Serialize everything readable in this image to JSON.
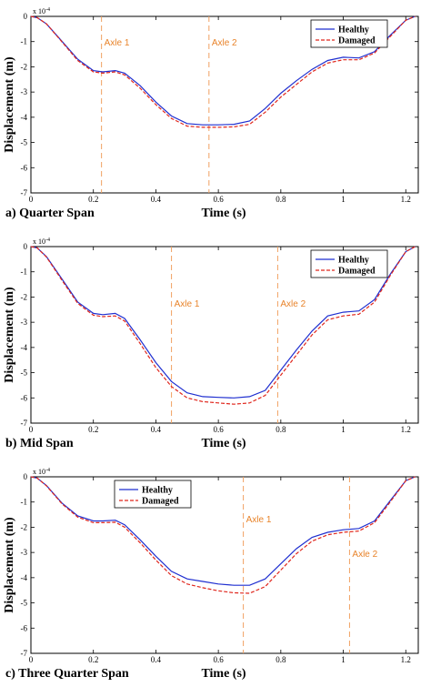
{
  "colors": {
    "healthy": "#1f2fd0",
    "damaged": "#e0261c",
    "axle": "#f0a060",
    "axle_text": "#e8832a"
  },
  "chart_data": [
    {
      "type": "line",
      "caption": "a) Quarter Span",
      "xlabel": "Time (s)",
      "ylabel": "Displacement (m)",
      "y_exponent": "x 10",
      "y_exponent_power": "-4",
      "xlim": [
        0,
        1.24
      ],
      "ylim": [
        -7,
        0
      ],
      "xticks": [
        "0",
        "0.2",
        "0.4",
        "0.6",
        "0.8",
        "1",
        "1.2"
      ],
      "yticks": [
        "0",
        "-1",
        "-2",
        "-3",
        "-4",
        "-5",
        "-6",
        "-7"
      ],
      "legend_position": "top-right",
      "axles": [
        {
          "label": "Axle 1",
          "x": 0.226
        },
        {
          "label": "Axle 2",
          "x": 0.57
        }
      ],
      "series": [
        {
          "name": "Healthy",
          "style": "solid",
          "x": [
            0,
            0.02,
            0.05,
            0.1,
            0.15,
            0.2,
            0.23,
            0.27,
            0.3,
            0.35,
            0.4,
            0.45,
            0.5,
            0.55,
            0.6,
            0.65,
            0.7,
            0.75,
            0.8,
            0.85,
            0.9,
            0.95,
            1.0,
            1.05,
            1.1,
            1.15,
            1.2,
            1.23
          ],
          "y": [
            0,
            -0.05,
            -0.3,
            -1.0,
            -1.7,
            -2.15,
            -2.2,
            -2.15,
            -2.25,
            -2.75,
            -3.4,
            -3.95,
            -4.25,
            -4.3,
            -4.3,
            -4.28,
            -4.15,
            -3.65,
            -3.05,
            -2.55,
            -2.1,
            -1.75,
            -1.62,
            -1.65,
            -1.4,
            -0.75,
            -0.15,
            0
          ]
        },
        {
          "name": "Damaged",
          "style": "dashed",
          "x": [
            0,
            0.02,
            0.05,
            0.1,
            0.15,
            0.2,
            0.23,
            0.27,
            0.3,
            0.35,
            0.4,
            0.45,
            0.5,
            0.55,
            0.6,
            0.65,
            0.7,
            0.75,
            0.8,
            0.85,
            0.9,
            0.95,
            1.0,
            1.05,
            1.1,
            1.15,
            1.2,
            1.23
          ],
          "y": [
            0,
            -0.05,
            -0.3,
            -1.02,
            -1.75,
            -2.2,
            -2.25,
            -2.2,
            -2.32,
            -2.85,
            -3.5,
            -4.05,
            -4.35,
            -4.4,
            -4.4,
            -4.38,
            -4.28,
            -3.8,
            -3.2,
            -2.7,
            -2.2,
            -1.85,
            -1.72,
            -1.72,
            -1.45,
            -0.8,
            -0.15,
            0
          ]
        }
      ]
    },
    {
      "type": "line",
      "caption": "b) Mid Span",
      "xlabel": "Time (s)",
      "ylabel": "Displacement (m)",
      "y_exponent": "x 10",
      "y_exponent_power": "-4",
      "xlim": [
        0,
        1.24
      ],
      "ylim": [
        -7,
        0
      ],
      "xticks": [
        "0",
        "0.2",
        "0.4",
        "0.6",
        "0.8",
        "1",
        "1.2"
      ],
      "yticks": [
        "0",
        "-1",
        "-2",
        "-3",
        "-4",
        "-5",
        "-6",
        "-7"
      ],
      "legend_position": "top-right",
      "axles": [
        {
          "label": "Axle 1",
          "x": 0.45
        },
        {
          "label": "Axle 2",
          "x": 0.79
        }
      ],
      "series": [
        {
          "name": "Healthy",
          "style": "solid",
          "x": [
            0,
            0.02,
            0.05,
            0.1,
            0.15,
            0.2,
            0.23,
            0.27,
            0.3,
            0.35,
            0.4,
            0.45,
            0.5,
            0.55,
            0.6,
            0.65,
            0.7,
            0.75,
            0.8,
            0.85,
            0.9,
            0.95,
            1.0,
            1.05,
            1.1,
            1.15,
            1.2,
            1.23
          ],
          "y": [
            0,
            -0.05,
            -0.4,
            -1.3,
            -2.2,
            -2.65,
            -2.7,
            -2.65,
            -2.85,
            -3.7,
            -4.6,
            -5.35,
            -5.8,
            -5.95,
            -5.98,
            -6.0,
            -5.95,
            -5.7,
            -4.9,
            -4.1,
            -3.35,
            -2.75,
            -2.6,
            -2.55,
            -2.1,
            -1.1,
            -0.2,
            0
          ]
        },
        {
          "name": "Damaged",
          "style": "dashed",
          "x": [
            0,
            0.02,
            0.05,
            0.1,
            0.15,
            0.2,
            0.23,
            0.27,
            0.3,
            0.35,
            0.4,
            0.45,
            0.5,
            0.55,
            0.6,
            0.65,
            0.7,
            0.75,
            0.8,
            0.85,
            0.9,
            0.95,
            1.0,
            1.05,
            1.1,
            1.15,
            1.2,
            1.23
          ],
          "y": [
            0,
            -0.05,
            -0.42,
            -1.35,
            -2.25,
            -2.72,
            -2.78,
            -2.75,
            -2.95,
            -3.85,
            -4.8,
            -5.55,
            -6.0,
            -6.15,
            -6.2,
            -6.25,
            -6.2,
            -5.9,
            -5.1,
            -4.3,
            -3.5,
            -2.9,
            -2.75,
            -2.68,
            -2.2,
            -1.15,
            -0.2,
            0
          ]
        }
      ]
    },
    {
      "type": "line",
      "caption": "c) Three Quarter Span",
      "xlabel": "Time (s)",
      "ylabel": "Displacement (m)",
      "y_exponent": "x 10",
      "y_exponent_power": "-4",
      "xlim": [
        0,
        1.24
      ],
      "ylim": [
        -7,
        0
      ],
      "xticks": [
        "0",
        "0.2",
        "0.4",
        "0.6",
        "0.8",
        "1",
        "1.2"
      ],
      "yticks": [
        "0",
        "-1",
        "-2",
        "-3",
        "-4",
        "-5",
        "-6",
        "-7"
      ],
      "legend_position": "top-left",
      "axles": [
        {
          "label": "Axle 1",
          "x": 0.68
        },
        {
          "label": "Axle 2",
          "x": 1.02
        }
      ],
      "series": [
        {
          "name": "Healthy",
          "style": "solid",
          "x": [
            0,
            0.02,
            0.05,
            0.1,
            0.15,
            0.2,
            0.23,
            0.27,
            0.3,
            0.35,
            0.4,
            0.45,
            0.5,
            0.55,
            0.6,
            0.65,
            0.7,
            0.75,
            0.8,
            0.85,
            0.9,
            0.95,
            1.0,
            1.05,
            1.1,
            1.15,
            1.2,
            1.23
          ],
          "y": [
            0,
            -0.05,
            -0.35,
            -1.05,
            -1.55,
            -1.75,
            -1.75,
            -1.72,
            -1.9,
            -2.5,
            -3.15,
            -3.75,
            -4.05,
            -4.15,
            -4.25,
            -4.3,
            -4.3,
            -4.05,
            -3.45,
            -2.85,
            -2.4,
            -2.2,
            -2.1,
            -2.05,
            -1.75,
            -0.95,
            -0.15,
            0
          ]
        },
        {
          "name": "Damaged",
          "style": "dashed",
          "x": [
            0,
            0.02,
            0.05,
            0.1,
            0.15,
            0.2,
            0.23,
            0.27,
            0.3,
            0.35,
            0.4,
            0.45,
            0.5,
            0.55,
            0.6,
            0.65,
            0.7,
            0.75,
            0.8,
            0.85,
            0.9,
            0.95,
            1.0,
            1.05,
            1.1,
            1.15,
            1.2,
            1.23
          ],
          "y": [
            0,
            -0.05,
            -0.36,
            -1.08,
            -1.6,
            -1.82,
            -1.82,
            -1.8,
            -2.0,
            -2.62,
            -3.3,
            -3.92,
            -4.25,
            -4.4,
            -4.52,
            -4.6,
            -4.62,
            -4.35,
            -3.7,
            -3.05,
            -2.55,
            -2.3,
            -2.2,
            -2.15,
            -1.82,
            -1.0,
            -0.15,
            0
          ]
        }
      ]
    }
  ]
}
